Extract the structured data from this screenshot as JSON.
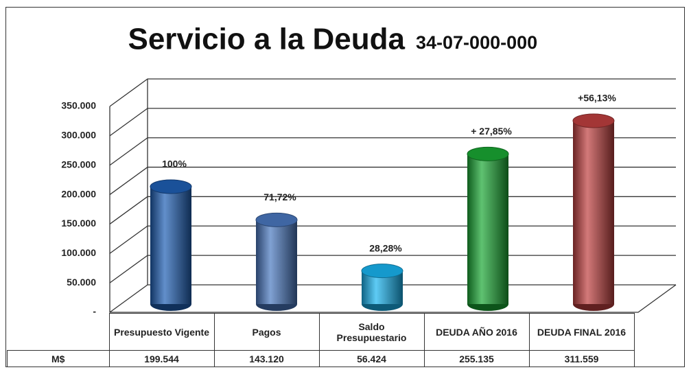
{
  "chart_data": {
    "type": "bar",
    "title": "Servicio a la Deuda",
    "subtitle": "34-07-000-000",
    "categories": [
      "Presupuesto Vigente",
      "Pagos",
      "Saldo Presupuestario",
      "DEUDA AÑO 2016",
      "DEUDA FINAL 2016"
    ],
    "values": [
      199544,
      143120,
      56424,
      255135,
      311559
    ],
    "value_labels": [
      "199.544",
      "143.120",
      "56.424",
      "255.135",
      "311.559"
    ],
    "annotations": [
      "100%",
      "71,72%",
      "28,28%",
      "+ 27,85%",
      "+56,13%"
    ],
    "unit_label": "M$",
    "colors": [
      "#1f5fb4",
      "#4a78c0",
      "#19b4f0",
      "#1aa834",
      "#c0403f"
    ],
    "ylim": [
      0,
      350000
    ],
    "yticks": [
      {
        "value": 0,
        "label": "-"
      },
      {
        "value": 50000,
        "label": "50.000"
      },
      {
        "value": 100000,
        "label": "100.000"
      },
      {
        "value": 150000,
        "label": "150.000"
      },
      {
        "value": 200000,
        "label": "200.000"
      },
      {
        "value": 250000,
        "label": "250.000"
      },
      {
        "value": 300000,
        "label": "300.000"
      },
      {
        "value": 350000,
        "label": "350.000"
      }
    ],
    "grid": true
  }
}
